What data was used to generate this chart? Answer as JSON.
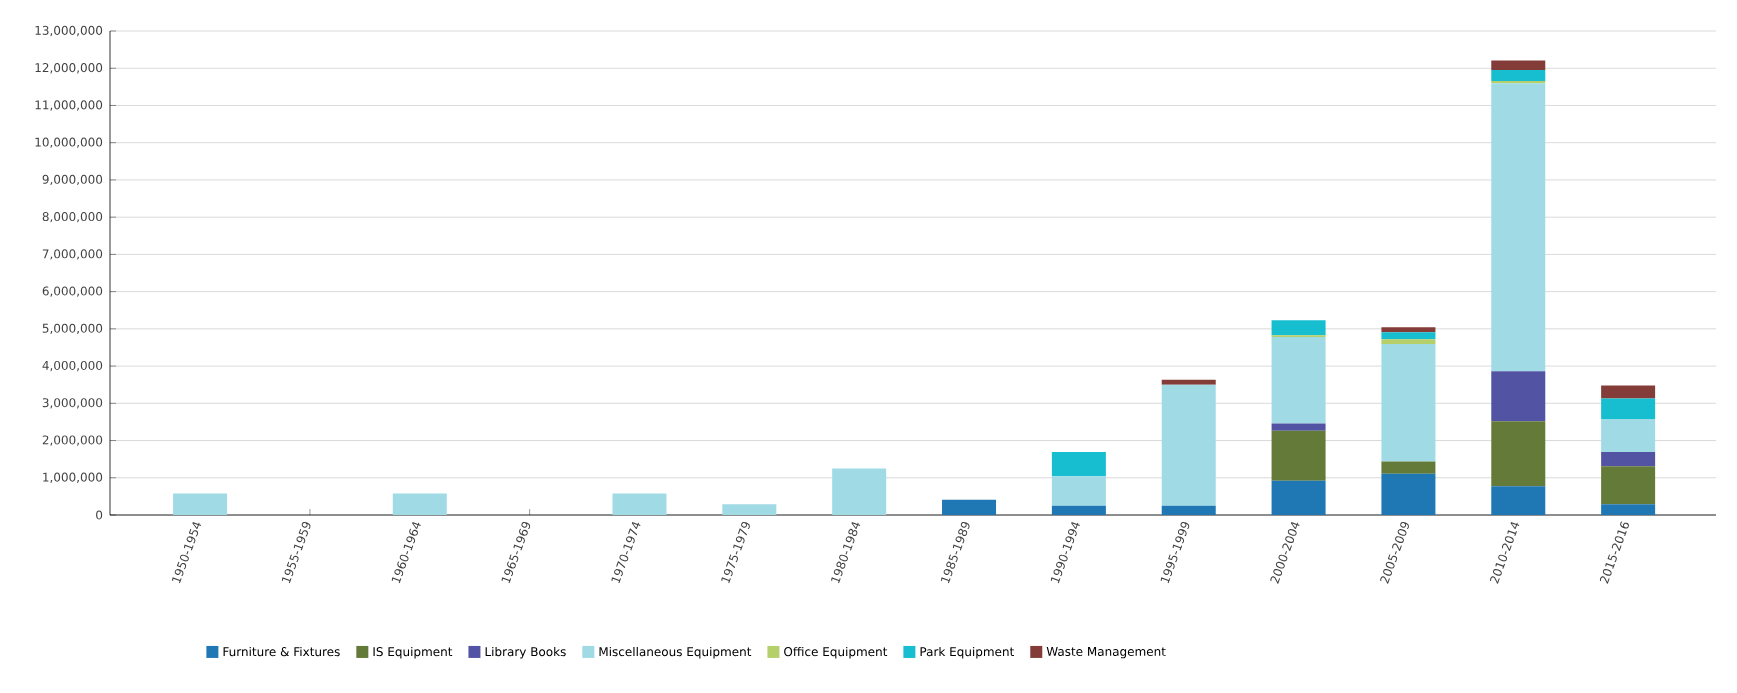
{
  "chart_data": {
    "type": "bar",
    "stacked": true,
    "grid": "y",
    "legend": "bottom",
    "categories": [
      "1950-1954",
      "1955-1959",
      "1960-1964",
      "1965-1969",
      "1970-1974",
      "1975-1979",
      "1980-1984",
      "1985-1989",
      "1990-1994",
      "1995-1999",
      "2000-2004",
      "2005-2009",
      "2010-2014",
      "2015-2016"
    ],
    "ylim": [
      0,
      13000000
    ],
    "yticks": [
      0,
      {
        "value": 1000000,
        "label": "1,000,000"
      },
      {
        "value": 2000000,
        "label": "2,000,000"
      },
      {
        "value": 3000000,
        "label": "3,000,000"
      },
      {
        "value": 4000000,
        "label": "4,000,000"
      },
      {
        "value": 5000000,
        "label": "5,000,000"
      },
      {
        "value": 6000000,
        "label": "6,000,000"
      },
      {
        "value": 7000000,
        "label": "7,000,000"
      },
      {
        "value": 8000000,
        "label": "8,000,000"
      },
      {
        "value": 9000000,
        "label": "9,000,000"
      },
      {
        "value": 10000000,
        "label": "10,000,000"
      },
      {
        "value": 11000000,
        "label": "11,000,000"
      },
      {
        "value": 12000000,
        "label": "12,000,000"
      },
      {
        "value": 13000000,
        "label": "13,000,000"
      }
    ],
    "series": [
      {
        "name": "Furniture & Fixtures",
        "color": "#1f77b4",
        "values": [
          0,
          0,
          0,
          0,
          0,
          0,
          0,
          410000,
          250000,
          250000,
          920000,
          1110000,
          770000,
          290000
        ]
      },
      {
        "name": "IS Equipment",
        "color": "#647a38",
        "values": [
          0,
          0,
          0,
          0,
          0,
          0,
          0,
          0,
          0,
          0,
          1340000,
          330000,
          1750000,
          1020000
        ]
      },
      {
        "name": "Library Books",
        "color": "#5254a3",
        "values": [
          0,
          0,
          0,
          0,
          0,
          0,
          0,
          0,
          0,
          0,
          200000,
          0,
          1340000,
          380000
        ]
      },
      {
        "name": "Miscellaneous Equipment",
        "color": "#a0dae5",
        "values": [
          580000,
          0,
          580000,
          0,
          580000,
          290000,
          1250000,
          0,
          790000,
          3250000,
          2320000,
          3150000,
          7740000,
          890000
        ]
      },
      {
        "name": "Office Equipment",
        "color": "#b5cf6b",
        "values": [
          0,
          0,
          0,
          0,
          0,
          0,
          0,
          0,
          0,
          0,
          50000,
          130000,
          60000,
          0
        ]
      },
      {
        "name": "Park Equipment",
        "color": "#17becf",
        "values": [
          0,
          0,
          0,
          0,
          0,
          0,
          0,
          0,
          650000,
          0,
          400000,
          190000,
          290000,
          550000
        ]
      },
      {
        "name": "Waste Management",
        "color": "#843c39",
        "values": [
          0,
          0,
          0,
          0,
          0,
          0,
          0,
          0,
          0,
          130000,
          0,
          130000,
          260000,
          350000
        ]
      }
    ]
  }
}
